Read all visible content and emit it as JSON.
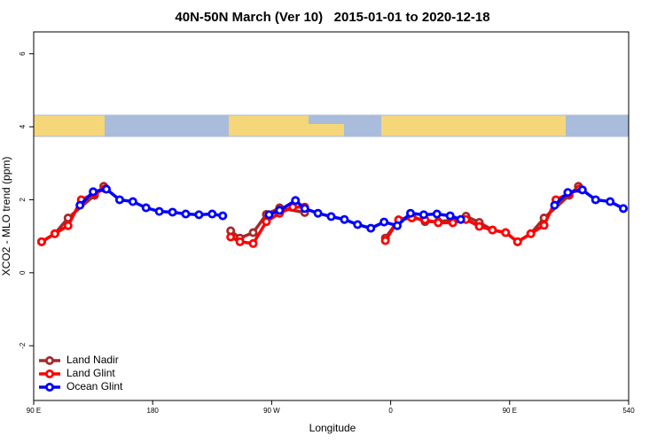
{
  "chart_data": {
    "type": "line",
    "title": "40N-50N March (Ver 10)   2015-01-01 to 2020-12-18",
    "x_label": "Longitude",
    "y_label": "XCO2 - MLO trend (ppm)",
    "xlim": [
      90,
      540
    ],
    "ylim": [
      -3.5,
      6.6
    ],
    "xticks": [
      {
        "value": 90,
        "label": "90 E"
      },
      180,
      {
        "value": 270,
        "label": "90 W"
      },
      {
        "value": 360,
        "label": "0"
      },
      {
        "value": 450,
        "label": "90 E"
      },
      540
    ],
    "yticks": [
      -2,
      0,
      2,
      4,
      6
    ],
    "legend": "bottom-left",
    "series": [
      {
        "name": "Land Nadir",
        "color": "#a52a2a",
        "x": [
          96,
          106,
          116,
          136,
          143,
          190,
          239,
          246,
          256,
          266,
          276,
          295,
          330,
          356,
          366,
          376,
          386,
          396,
          407,
          417,
          427,
          437,
          447,
          456,
          466,
          476,
          495,
          502
        ],
        "values": [
          0.85,
          1.07,
          1.5,
          2.12,
          2.37,
          null,
          1.15,
          0.95,
          1.1,
          1.6,
          1.78,
          1.65,
          null,
          0.95,
          1.45,
          1.55,
          1.4,
          1.4,
          1.45,
          1.55,
          1.38,
          1.17,
          1.1,
          0.85,
          1.07,
          1.5,
          2.12,
          2.37
        ]
      },
      {
        "name": "Land Glint",
        "color": "#ff0000",
        "x": [
          96,
          106,
          116,
          126,
          136,
          144,
          190,
          239,
          246,
          256,
          266,
          276,
          286,
          295,
          330,
          356,
          366,
          376,
          386,
          396,
          407,
          417,
          427,
          437,
          447,
          456,
          466,
          476,
          485,
          495,
          503
        ],
        "values": [
          0.85,
          1.07,
          1.29,
          2.0,
          2.17,
          2.3,
          null,
          0.98,
          0.85,
          0.8,
          1.4,
          1.63,
          1.8,
          1.8,
          null,
          0.88,
          1.45,
          1.5,
          1.45,
          1.37,
          1.37,
          1.46,
          1.27,
          1.17,
          1.1,
          0.85,
          1.07,
          1.3,
          2.0,
          2.17,
          2.3
        ]
      },
      {
        "name": "Ocean Glint",
        "color": "#0000ff",
        "x": [
          125,
          135,
          145,
          155,
          165,
          175,
          185,
          195,
          205,
          215,
          225,
          233,
          250,
          268,
          276,
          288,
          295,
          305,
          315,
          325,
          335,
          345,
          355,
          365,
          375,
          385,
          395,
          405,
          413,
          450,
          484,
          494,
          505,
          515,
          526,
          536
        ],
        "values": [
          1.85,
          2.22,
          2.29,
          2.0,
          1.95,
          1.78,
          1.68,
          1.66,
          1.61,
          1.59,
          1.61,
          1.56,
          null,
          1.59,
          1.71,
          1.98,
          1.76,
          1.63,
          1.54,
          1.46,
          1.32,
          1.22,
          1.39,
          1.29,
          1.63,
          1.59,
          1.61,
          1.56,
          1.46,
          null,
          1.85,
          2.2,
          2.27,
          2.0,
          1.95,
          1.76
        ]
      }
    ]
  }
}
